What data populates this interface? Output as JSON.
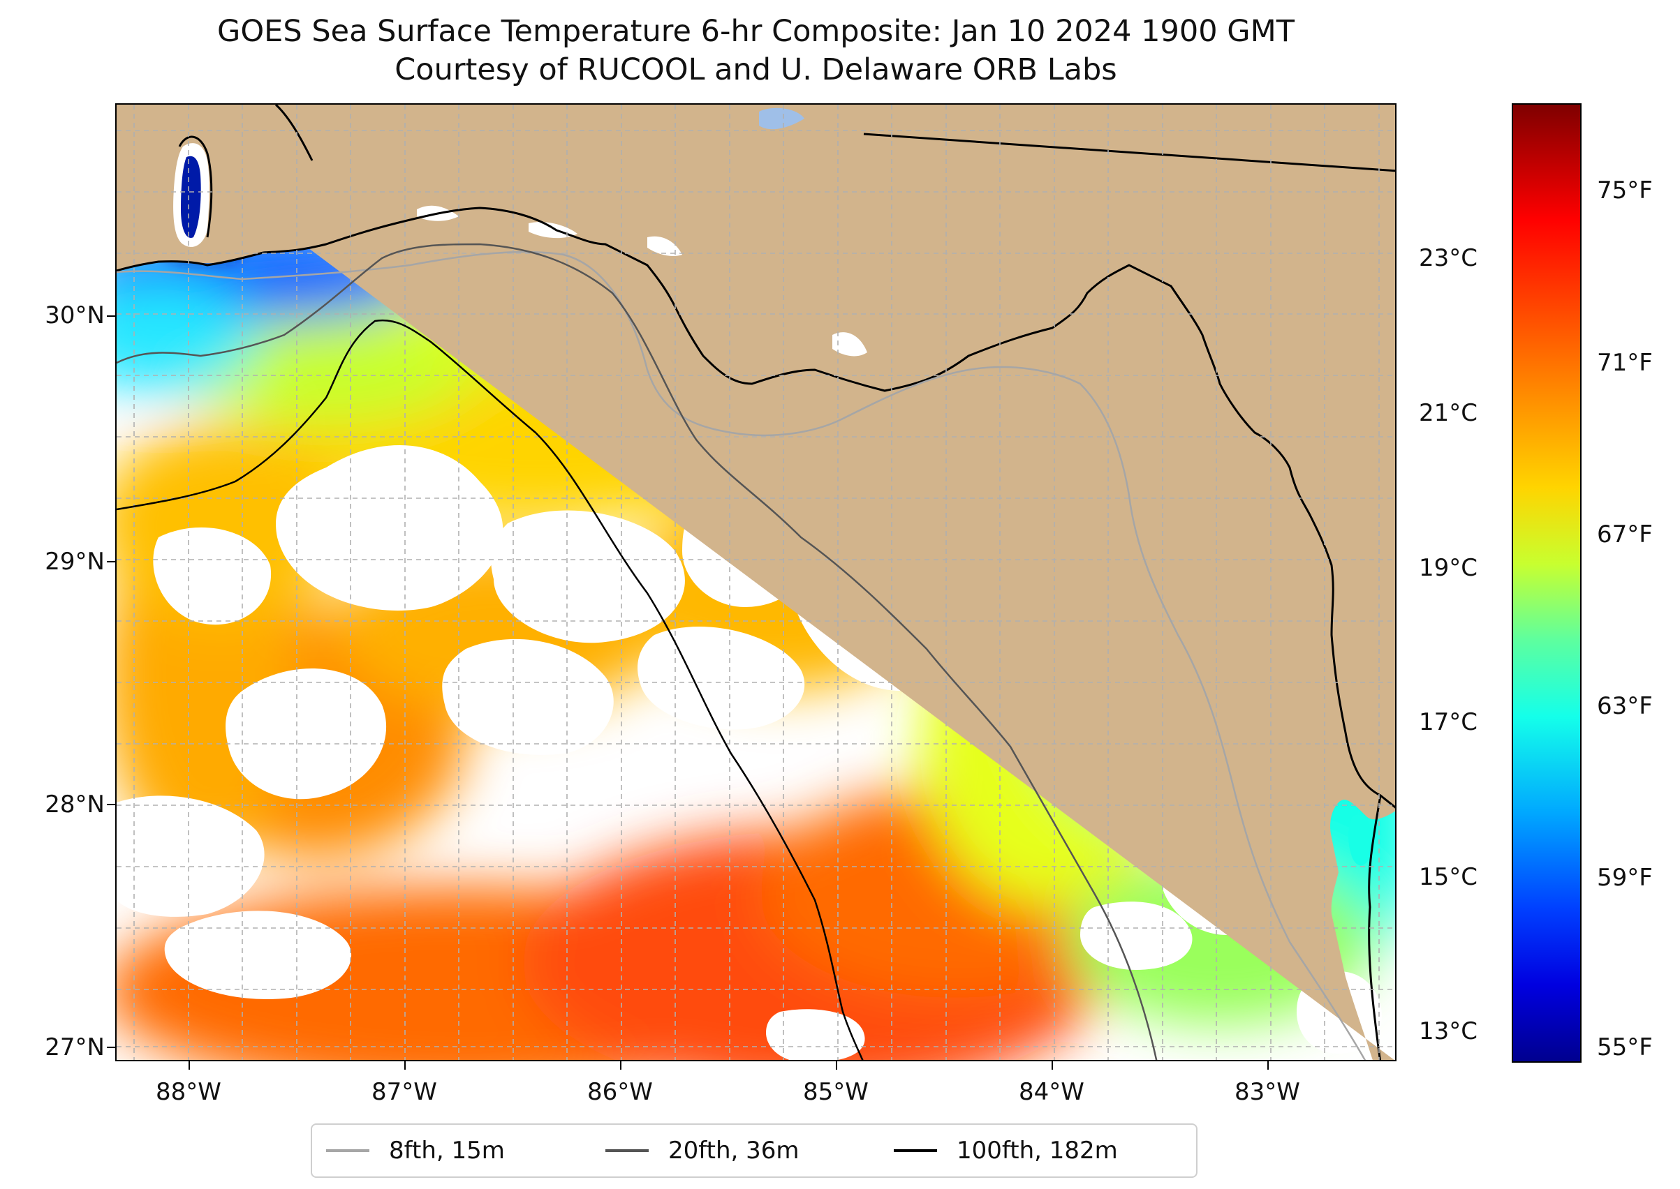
{
  "title": {
    "line1": "GOES Sea Surface Temperature 6-hr Composite: Jan 10 2024 1900 GMT",
    "line2": "Courtesy of RUCOOL and U. Delaware ORB Labs"
  },
  "colors": {
    "land": "#d2b48c",
    "ocean_nodata": "#ffffff",
    "gridline": "#b0b0b0",
    "isobath_8fth": "#a6a6a6",
    "isobath_20fth": "#555555",
    "isobath_100fth": "#000000",
    "lake": "#9fbfe8"
  },
  "axes": {
    "lat_labels": [
      "30°N",
      "29°N",
      "28°N",
      "27°N"
    ],
    "lon_labels": [
      "88°W",
      "87°W",
      "86°W",
      "85°W",
      "84°W",
      "83°W"
    ]
  },
  "colorbar": {
    "colormap": "jet",
    "celsius_labels": [
      "23°C",
      "21°C",
      "19°C",
      "17°C",
      "15°C",
      "13°C"
    ],
    "fahrenheit_labels": [
      "75°F",
      "71°F",
      "67°F",
      "63°F",
      "59°F",
      "55°F"
    ]
  },
  "legend": {
    "items": [
      {
        "label": "8fth, 15m",
        "color": "#a6a6a6"
      },
      {
        "label": "20fth, 36m",
        "color": "#555555"
      },
      {
        "label": "100fth, 182m",
        "color": "#000000"
      }
    ]
  }
}
